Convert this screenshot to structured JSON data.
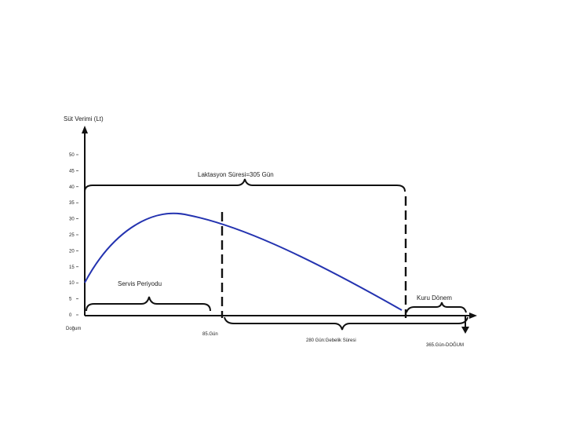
{
  "diagram": {
    "y_axis_label": "Süt Verimi (Lt)",
    "y_ticks": [
      "50",
      "45",
      "40",
      "35",
      "30",
      "25",
      "20",
      "15",
      "10",
      "5",
      "0"
    ],
    "origin_label": "Doğum",
    "lactation_label": "Laktasyon Süresi=305 Gün",
    "service_label": "Servis Periyodu",
    "day85_label": "85.Gün",
    "gestation_label": "280 Gün:Gebelik Süresi",
    "dry_label": "Kuru Dönem",
    "birth_label": "365.Gün-DOĞUM",
    "colors": {
      "curve": "#2433b0",
      "ink": "#111111"
    }
  }
}
